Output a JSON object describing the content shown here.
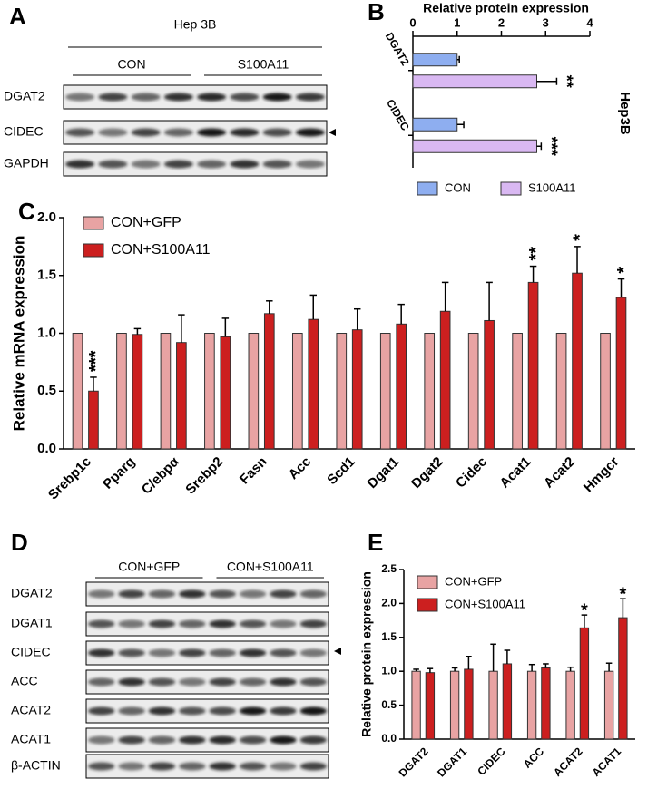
{
  "blot_a": {
    "panel": "A",
    "cell_line": "Hep 3B",
    "groups": [
      "CON",
      "S100A11"
    ],
    "rows": [
      "DGAT2",
      "CIDEC",
      "GAPDH"
    ]
  },
  "blot_d": {
    "panel": "D",
    "groups": [
      "CON+GFP",
      "CON+S100A11"
    ],
    "rows": [
      "DGAT2",
      "DGAT1",
      "CIDEC",
      "ACC",
      "ACAT2",
      "ACAT1",
      "β-ACTIN"
    ]
  },
  "chart_data": [
    {
      "type": "bar",
      "panel": "B",
      "orientation": "horizontal",
      "title": "Relative protein expression",
      "side_label": "Hep3B",
      "categories": [
        "DGAT2",
        "CIDEC"
      ],
      "xlim": [
        0,
        4
      ],
      "xticks": [
        0,
        1,
        2,
        3,
        4
      ],
      "series": [
        {
          "name": "CON",
          "color": "#8eaef0",
          "values": [
            1.0,
            1.0
          ],
          "errors": [
            0.05,
            0.15
          ],
          "significance": [
            null,
            null
          ]
        },
        {
          "name": "S100A11",
          "color": "#d9b8f2",
          "values": [
            2.8,
            2.8
          ],
          "errors": [
            0.45,
            0.1
          ],
          "significance": [
            "**",
            "***"
          ]
        }
      ]
    },
    {
      "type": "bar",
      "panel": "C",
      "ylabel": "Relative mRNA expression",
      "categories": [
        "Srebp1c",
        "Pparg",
        "C/ebpα",
        "Srebp2",
        "Fasn",
        "Acc",
        "Scd1",
        "Dgat1",
        "Dgat2",
        "Cidec",
        "Acat1",
        "Acat2",
        "Hmgcr"
      ],
      "ylim": [
        0,
        2
      ],
      "yticks": [
        {
          "value": 0,
          "label": "0.0"
        },
        0.5,
        {
          "value": 1,
          "label": "1.0"
        },
        1.5,
        {
          "value": 2,
          "label": "2.0"
        }
      ],
      "series": [
        {
          "name": "CON+GFP",
          "color": "#e8a3a3",
          "values": [
            1,
            1,
            1,
            1,
            1,
            1,
            1,
            1,
            1,
            1,
            1,
            1,
            1
          ]
        },
        {
          "name": "CON+S100A11",
          "color": "#cc1f1f",
          "values": [
            0.5,
            0.99,
            0.92,
            0.97,
            1.17,
            1.12,
            1.03,
            1.08,
            1.19,
            1.11,
            1.44,
            1.52,
            1.31
          ],
          "errors": [
            0.12,
            0.05,
            0.24,
            0.16,
            0.11,
            0.21,
            0.18,
            0.17,
            0.25,
            0.33,
            0.14,
            0.23,
            0.16
          ],
          "significance": [
            "***",
            null,
            null,
            null,
            null,
            null,
            null,
            null,
            null,
            null,
            "**",
            "*",
            "*"
          ]
        }
      ]
    },
    {
      "type": "bar",
      "panel": "E",
      "ylabel": "Relative protein expression",
      "categories": [
        "DGAT2",
        "DGAT1",
        "CIDEC",
        "ACC",
        "ACAT2",
        "ACAT1"
      ],
      "ylim": [
        0,
        2.5
      ],
      "yticks": [
        {
          "value": 0,
          "label": "0.0"
        },
        0.5,
        {
          "value": 1,
          "label": "1.0"
        },
        1.5,
        {
          "value": 2,
          "label": "2.0"
        },
        2.5
      ],
      "series": [
        {
          "name": "CON+GFP",
          "color": "#e8a3a3",
          "values": [
            1,
            1,
            1,
            1,
            1,
            1
          ],
          "errors": [
            0.03,
            0.05,
            0.4,
            0.1,
            0.06,
            0.12
          ]
        },
        {
          "name": "CON+S100A11",
          "color": "#cc1f1f",
          "values": [
            0.98,
            1.03,
            1.11,
            1.05,
            1.64,
            1.79
          ],
          "errors": [
            0.06,
            0.19,
            0.2,
            0.06,
            0.19,
            0.28
          ],
          "significance": [
            null,
            null,
            null,
            null,
            "*",
            "*"
          ]
        }
      ]
    }
  ]
}
